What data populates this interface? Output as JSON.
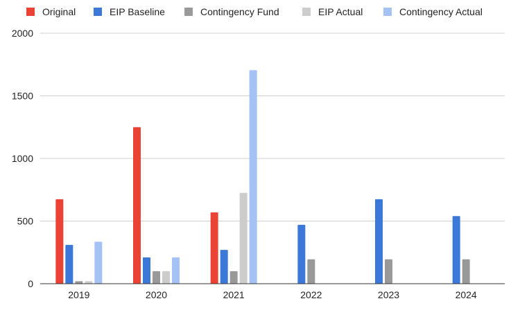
{
  "chart_data": {
    "type": "bar",
    "title": "",
    "xlabel": "",
    "ylabel": "",
    "categories": [
      "2019",
      "2020",
      "2021",
      "2022",
      "2023",
      "2024"
    ],
    "ylim": [
      0,
      2000
    ],
    "yticks": [
      0,
      500,
      1000,
      1500,
      2000
    ],
    "grid": true,
    "legend_position": "top",
    "series": [
      {
        "name": "Original",
        "color": "#ea4335",
        "values": [
          675,
          1250,
          570,
          null,
          null,
          null
        ]
      },
      {
        "name": "EIP Baseline",
        "color": "#3c78d8",
        "values": [
          310,
          210,
          270,
          470,
          675,
          540
        ]
      },
      {
        "name": "Contingency Fund",
        "color": "#999999",
        "values": [
          20,
          100,
          100,
          195,
          195,
          195
        ]
      },
      {
        "name": "EIP Actual",
        "color": "#cccccc",
        "values": [
          20,
          100,
          725,
          null,
          null,
          null
        ]
      },
      {
        "name": "Contingency Actual",
        "color": "#a4c2f4",
        "values": [
          335,
          210,
          1705,
          null,
          null,
          null
        ]
      }
    ]
  }
}
